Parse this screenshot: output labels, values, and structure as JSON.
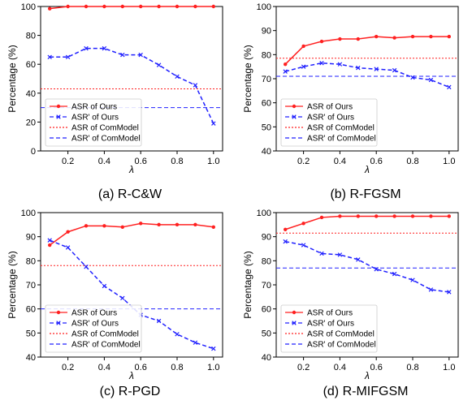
{
  "chart_data": [
    {
      "type": "line",
      "caption": "(a) R-C&W",
      "xlabel": "λ",
      "ylabel": "Percentage (%)",
      "xlim": [
        0.05,
        1.05
      ],
      "ylim": [
        0,
        100
      ],
      "xticks": [
        "0.2",
        "0.4",
        "0.6",
        "0.8",
        "1.0"
      ],
      "yticks": [
        "0",
        "20",
        "40",
        "60",
        "80",
        "100"
      ],
      "legend_position": "lower-left",
      "grid": false,
      "x": [
        0.1,
        0.2,
        0.3,
        0.4,
        0.5,
        0.6,
        0.7,
        0.8,
        0.9,
        1.0
      ],
      "series": [
        {
          "name": "ASR of Ours",
          "color": "#ff2020",
          "style": "solid",
          "marker": "dot",
          "values": [
            98.5,
            100,
            100,
            100,
            100,
            100,
            100,
            100,
            100,
            100
          ]
        },
        {
          "name": "ASR' of Ours",
          "color": "#2020ff",
          "style": "dashed",
          "marker": "x",
          "values": [
            65,
            65,
            71,
            71,
            66.5,
            66.5,
            59.5,
            51.5,
            45.5,
            19
          ]
        }
      ],
      "reference_lines": [
        {
          "name": "ASR of ComModel",
          "color": "#ff2020",
          "style": "dotted",
          "value": 43
        },
        {
          "name": "ASR' of ComModel",
          "color": "#2020ff",
          "style": "dashed",
          "value": 30
        }
      ]
    },
    {
      "type": "line",
      "caption": "(b) R-FGSM",
      "xlabel": "λ",
      "ylabel": "Percentage (%)",
      "xlim": [
        0.05,
        1.05
      ],
      "ylim": [
        40,
        100
      ],
      "xticks": [
        "0.2",
        "0.4",
        "0.6",
        "0.8",
        "1.0"
      ],
      "yticks": [
        "40",
        "50",
        "60",
        "70",
        "80",
        "90",
        "100"
      ],
      "legend_position": "lower-left",
      "grid": false,
      "x": [
        0.1,
        0.2,
        0.3,
        0.4,
        0.5,
        0.6,
        0.7,
        0.8,
        0.9,
        1.0
      ],
      "series": [
        {
          "name": "ASR of Ours",
          "color": "#ff2020",
          "style": "solid",
          "marker": "dot",
          "values": [
            76,
            83.5,
            85.5,
            86.5,
            86.5,
            87.5,
            87,
            87.5,
            87.5,
            87.5
          ]
        },
        {
          "name": "ASR' of Ours",
          "color": "#2020ff",
          "style": "dashed",
          "marker": "x",
          "values": [
            73,
            75,
            76.5,
            76,
            74.5,
            74,
            73.5,
            70.5,
            69.5,
            66.5
          ]
        }
      ],
      "reference_lines": [
        {
          "name": "ASR of ComModel",
          "color": "#ff2020",
          "style": "dotted",
          "value": 78.5
        },
        {
          "name": "ASR' of ComModel",
          "color": "#2020ff",
          "style": "dashed",
          "value": 71
        }
      ]
    },
    {
      "type": "line",
      "caption": "(c) R-PGD",
      "xlabel": "λ",
      "ylabel": "Percentage (%)",
      "xlim": [
        0.05,
        1.05
      ],
      "ylim": [
        40,
        100
      ],
      "xticks": [
        "0.2",
        "0.4",
        "0.6",
        "0.8",
        "1.0"
      ],
      "yticks": [
        "40",
        "50",
        "60",
        "70",
        "80",
        "90",
        "100"
      ],
      "legend_position": "lower-left",
      "grid": false,
      "x": [
        0.1,
        0.2,
        0.3,
        0.4,
        0.5,
        0.6,
        0.7,
        0.8,
        0.9,
        1.0
      ],
      "series": [
        {
          "name": "ASR of Ours",
          "color": "#ff2020",
          "style": "solid",
          "marker": "dot",
          "values": [
            86.5,
            92,
            94.5,
            94.5,
            94,
            95.5,
            95,
            95,
            95,
            94
          ]
        },
        {
          "name": "ASR' of Ours",
          "color": "#2020ff",
          "style": "dashed",
          "marker": "x",
          "values": [
            88.5,
            85.5,
            77.5,
            69.5,
            64.5,
            57.5,
            55,
            49.5,
            46,
            43.5
          ]
        }
      ],
      "reference_lines": [
        {
          "name": "ASR of ComModel",
          "color": "#ff2020",
          "style": "dotted",
          "value": 78
        },
        {
          "name": "ASR' of ComModel",
          "color": "#2020ff",
          "style": "dashed",
          "value": 60
        }
      ]
    },
    {
      "type": "line",
      "caption": "(d) R-MIFGSM",
      "xlabel": "λ",
      "ylabel": "Percentage (%)",
      "xlim": [
        0.05,
        1.05
      ],
      "ylim": [
        40,
        100
      ],
      "xticks": [
        "0.2",
        "0.4",
        "0.6",
        "0.8",
        "1.0"
      ],
      "yticks": [
        "40",
        "50",
        "60",
        "70",
        "80",
        "90",
        "100"
      ],
      "legend_position": "lower-left",
      "grid": false,
      "x": [
        0.1,
        0.2,
        0.3,
        0.4,
        0.5,
        0.6,
        0.7,
        0.8,
        0.9,
        1.0
      ],
      "series": [
        {
          "name": "ASR of Ours",
          "color": "#ff2020",
          "style": "solid",
          "marker": "dot",
          "values": [
            93,
            95.5,
            98,
            98.5,
            98.5,
            98.5,
            98.5,
            98.5,
            98.5,
            98.5
          ]
        },
        {
          "name": "ASR' of Ours",
          "color": "#2020ff",
          "style": "dashed",
          "marker": "x",
          "values": [
            88,
            86.5,
            83,
            82.5,
            80.5,
            76.5,
            74.5,
            72,
            68,
            67
          ]
        }
      ],
      "reference_lines": [
        {
          "name": "ASR of ComModel",
          "color": "#ff2020",
          "style": "dotted",
          "value": 91.5
        },
        {
          "name": "ASR' of ComModel",
          "color": "#2020ff",
          "style": "dashed",
          "value": 77
        }
      ]
    }
  ]
}
